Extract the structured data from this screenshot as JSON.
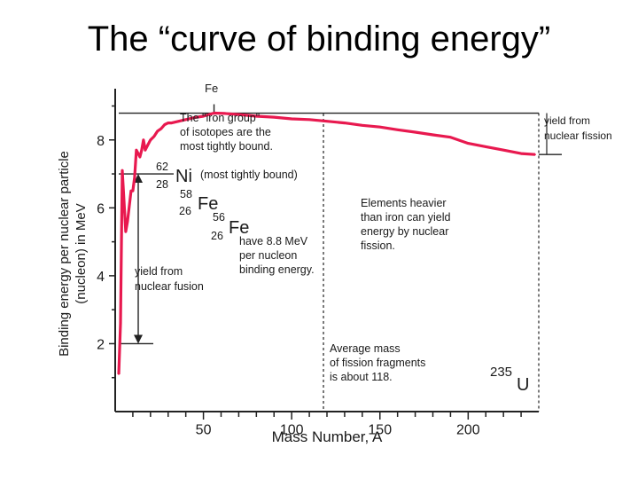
{
  "page": {
    "title": "The “curve of binding energy”"
  },
  "chart_data": {
    "type": "line",
    "title": "",
    "xlabel": "Mass Number, A",
    "ylabel": "Binding energy per nuclear particle (nucleon) in MeV",
    "xlim": [
      0,
      240
    ],
    "ylim": [
      0,
      9.3
    ],
    "x_ticks": [
      50,
      100,
      150,
      200
    ],
    "y_ticks": [
      2,
      4,
      6,
      8
    ],
    "grid": false,
    "colors": {
      "curve": "#e8194f",
      "axes": "#222222",
      "text": "#1a1a1a"
    },
    "series": [
      {
        "name": "",
        "x": [
          2,
          3,
          4,
          6,
          7,
          9,
          10,
          11,
          12,
          14,
          15,
          16,
          17,
          18,
          20,
          22,
          24,
          26,
          28,
          30,
          32,
          36,
          40,
          45,
          50,
          56,
          62,
          70,
          80,
          90,
          100,
          110,
          120,
          130,
          140,
          150,
          160,
          170,
          180,
          190,
          200,
          210,
          220,
          230,
          238
        ],
        "y": [
          1.1,
          2.6,
          7.1,
          5.3,
          5.6,
          6.5,
          6.5,
          6.9,
          7.7,
          7.5,
          7.7,
          8.0,
          7.7,
          7.8,
          8.0,
          8.1,
          8.26,
          8.33,
          8.45,
          8.5,
          8.5,
          8.55,
          8.6,
          8.66,
          8.7,
          8.79,
          8.78,
          8.75,
          8.7,
          8.67,
          8.62,
          8.6,
          8.55,
          8.5,
          8.43,
          8.38,
          8.3,
          8.23,
          8.15,
          8.08,
          7.9,
          7.8,
          7.7,
          7.6,
          7.57
        ]
      }
    ],
    "labels": {
      "fe_top": "Fe",
      "iron_group": [
        "The \"iron group\"",
        "of isotopes are the",
        "most tightly bound."
      ],
      "ni_mass": "62",
      "ni_z": "28",
      "ni_sym": "Ni",
      "ni_note": "(most tightly bound)",
      "fe58_mass": "58",
      "fe58_z": "26",
      "fe58_sym": "Fe",
      "fe56_mass": "56",
      "fe56_z": "26",
      "fe56_sym": "Fe",
      "fe56_note": [
        "have 8.8 MeV",
        "per nucleon",
        "binding energy."
      ],
      "fusion": [
        "yield from",
        "nuclear fusion"
      ],
      "heavier": [
        "Elements heavier",
        "than iron can yield",
        "energy by nuclear",
        "fission."
      ],
      "fission_yield": [
        "yield from",
        "nuclear fission"
      ],
      "avg_mass": [
        "Average mass",
        "of fission fragments",
        "is about 118."
      ],
      "u_mass": "235",
      "u_sym": "U"
    }
  }
}
